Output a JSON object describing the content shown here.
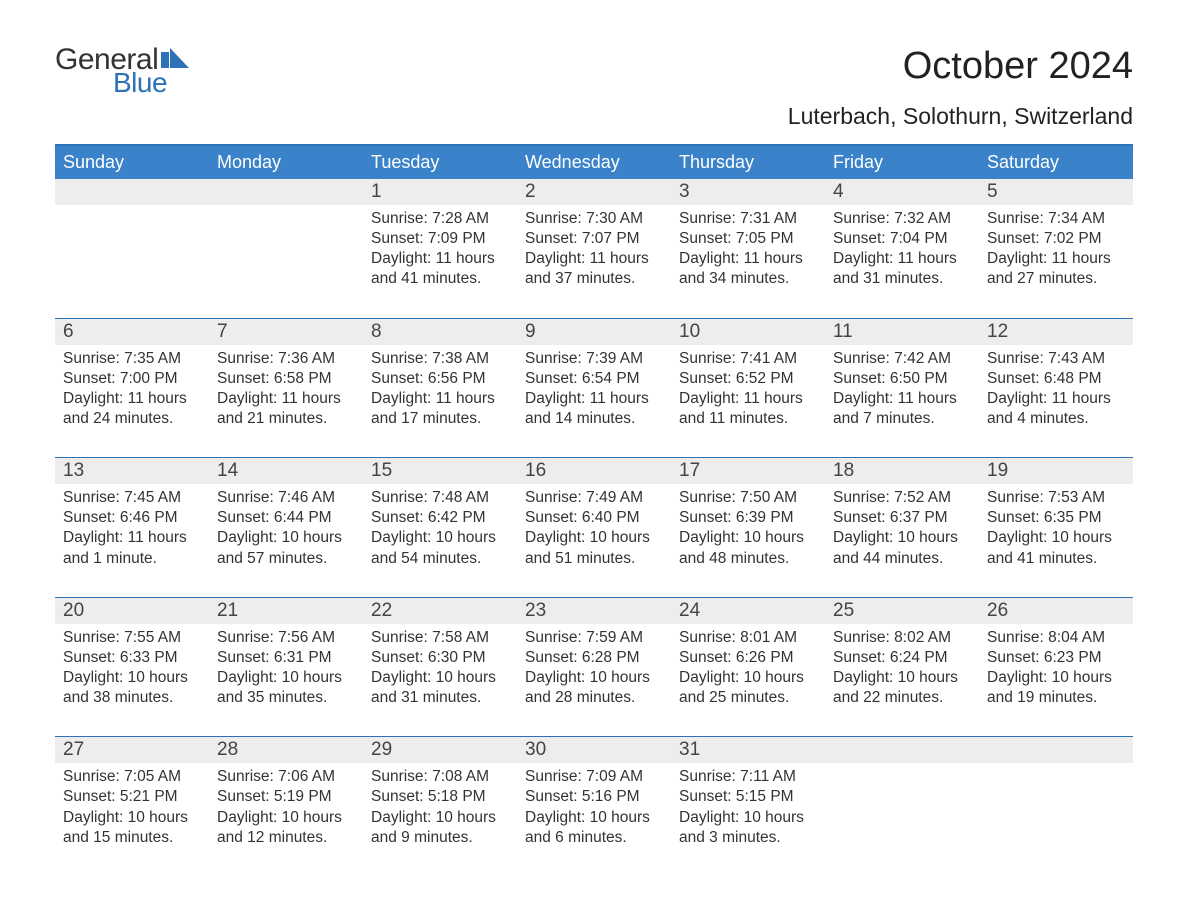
{
  "logo": {
    "word1": "General",
    "word2": "Blue"
  },
  "title": "October 2024",
  "subtitle": "Luterbach, Solothurn, Switzerland",
  "colors": {
    "blue": "#2c72b8",
    "blue_light": "#3a82c9",
    "gray_row": "#ededed",
    "text": "#333333",
    "background": "#ffffff"
  },
  "day_labels": [
    "Sunday",
    "Monday",
    "Tuesday",
    "Wednesday",
    "Thursday",
    "Friday",
    "Saturday"
  ],
  "weeks": [
    [
      {
        "num": "",
        "sunrise": "",
        "sunset": "",
        "daylight": ""
      },
      {
        "num": "",
        "sunrise": "",
        "sunset": "",
        "daylight": ""
      },
      {
        "num": "1",
        "sunrise": "Sunrise: 7:28 AM",
        "sunset": "Sunset: 7:09 PM",
        "daylight": "Daylight: 11 hours and 41 minutes."
      },
      {
        "num": "2",
        "sunrise": "Sunrise: 7:30 AM",
        "sunset": "Sunset: 7:07 PM",
        "daylight": "Daylight: 11 hours and 37 minutes."
      },
      {
        "num": "3",
        "sunrise": "Sunrise: 7:31 AM",
        "sunset": "Sunset: 7:05 PM",
        "daylight": "Daylight: 11 hours and 34 minutes."
      },
      {
        "num": "4",
        "sunrise": "Sunrise: 7:32 AM",
        "sunset": "Sunset: 7:04 PM",
        "daylight": "Daylight: 11 hours and 31 minutes."
      },
      {
        "num": "5",
        "sunrise": "Sunrise: 7:34 AM",
        "sunset": "Sunset: 7:02 PM",
        "daylight": "Daylight: 11 hours and 27 minutes."
      }
    ],
    [
      {
        "num": "6",
        "sunrise": "Sunrise: 7:35 AM",
        "sunset": "Sunset: 7:00 PM",
        "daylight": "Daylight: 11 hours and 24 minutes."
      },
      {
        "num": "7",
        "sunrise": "Sunrise: 7:36 AM",
        "sunset": "Sunset: 6:58 PM",
        "daylight": "Daylight: 11 hours and 21 minutes."
      },
      {
        "num": "8",
        "sunrise": "Sunrise: 7:38 AM",
        "sunset": "Sunset: 6:56 PM",
        "daylight": "Daylight: 11 hours and 17 minutes."
      },
      {
        "num": "9",
        "sunrise": "Sunrise: 7:39 AM",
        "sunset": "Sunset: 6:54 PM",
        "daylight": "Daylight: 11 hours and 14 minutes."
      },
      {
        "num": "10",
        "sunrise": "Sunrise: 7:41 AM",
        "sunset": "Sunset: 6:52 PM",
        "daylight": "Daylight: 11 hours and 11 minutes."
      },
      {
        "num": "11",
        "sunrise": "Sunrise: 7:42 AM",
        "sunset": "Sunset: 6:50 PM",
        "daylight": "Daylight: 11 hours and 7 minutes."
      },
      {
        "num": "12",
        "sunrise": "Sunrise: 7:43 AM",
        "sunset": "Sunset: 6:48 PM",
        "daylight": "Daylight: 11 hours and 4 minutes."
      }
    ],
    [
      {
        "num": "13",
        "sunrise": "Sunrise: 7:45 AM",
        "sunset": "Sunset: 6:46 PM",
        "daylight": "Daylight: 11 hours and 1 minute."
      },
      {
        "num": "14",
        "sunrise": "Sunrise: 7:46 AM",
        "sunset": "Sunset: 6:44 PM",
        "daylight": "Daylight: 10 hours and 57 minutes."
      },
      {
        "num": "15",
        "sunrise": "Sunrise: 7:48 AM",
        "sunset": "Sunset: 6:42 PM",
        "daylight": "Daylight: 10 hours and 54 minutes."
      },
      {
        "num": "16",
        "sunrise": "Sunrise: 7:49 AM",
        "sunset": "Sunset: 6:40 PM",
        "daylight": "Daylight: 10 hours and 51 minutes."
      },
      {
        "num": "17",
        "sunrise": "Sunrise: 7:50 AM",
        "sunset": "Sunset: 6:39 PM",
        "daylight": "Daylight: 10 hours and 48 minutes."
      },
      {
        "num": "18",
        "sunrise": "Sunrise: 7:52 AM",
        "sunset": "Sunset: 6:37 PM",
        "daylight": "Daylight: 10 hours and 44 minutes."
      },
      {
        "num": "19",
        "sunrise": "Sunrise: 7:53 AM",
        "sunset": "Sunset: 6:35 PM",
        "daylight": "Daylight: 10 hours and 41 minutes."
      }
    ],
    [
      {
        "num": "20",
        "sunrise": "Sunrise: 7:55 AM",
        "sunset": "Sunset: 6:33 PM",
        "daylight": "Daylight: 10 hours and 38 minutes."
      },
      {
        "num": "21",
        "sunrise": "Sunrise: 7:56 AM",
        "sunset": "Sunset: 6:31 PM",
        "daylight": "Daylight: 10 hours and 35 minutes."
      },
      {
        "num": "22",
        "sunrise": "Sunrise: 7:58 AM",
        "sunset": "Sunset: 6:30 PM",
        "daylight": "Daylight: 10 hours and 31 minutes."
      },
      {
        "num": "23",
        "sunrise": "Sunrise: 7:59 AM",
        "sunset": "Sunset: 6:28 PM",
        "daylight": "Daylight: 10 hours and 28 minutes."
      },
      {
        "num": "24",
        "sunrise": "Sunrise: 8:01 AM",
        "sunset": "Sunset: 6:26 PM",
        "daylight": "Daylight: 10 hours and 25 minutes."
      },
      {
        "num": "25",
        "sunrise": "Sunrise: 8:02 AM",
        "sunset": "Sunset: 6:24 PM",
        "daylight": "Daylight: 10 hours and 22 minutes."
      },
      {
        "num": "26",
        "sunrise": "Sunrise: 8:04 AM",
        "sunset": "Sunset: 6:23 PM",
        "daylight": "Daylight: 10 hours and 19 minutes."
      }
    ],
    [
      {
        "num": "27",
        "sunrise": "Sunrise: 7:05 AM",
        "sunset": "Sunset: 5:21 PM",
        "daylight": "Daylight: 10 hours and 15 minutes."
      },
      {
        "num": "28",
        "sunrise": "Sunrise: 7:06 AM",
        "sunset": "Sunset: 5:19 PM",
        "daylight": "Daylight: 10 hours and 12 minutes."
      },
      {
        "num": "29",
        "sunrise": "Sunrise: 7:08 AM",
        "sunset": "Sunset: 5:18 PM",
        "daylight": "Daylight: 10 hours and 9 minutes."
      },
      {
        "num": "30",
        "sunrise": "Sunrise: 7:09 AM",
        "sunset": "Sunset: 5:16 PM",
        "daylight": "Daylight: 10 hours and 6 minutes."
      },
      {
        "num": "31",
        "sunrise": "Sunrise: 7:11 AM",
        "sunset": "Sunset: 5:15 PM",
        "daylight": "Daylight: 10 hours and 3 minutes."
      },
      {
        "num": "",
        "sunrise": "",
        "sunset": "",
        "daylight": ""
      },
      {
        "num": "",
        "sunrise": "",
        "sunset": "",
        "daylight": ""
      }
    ]
  ]
}
